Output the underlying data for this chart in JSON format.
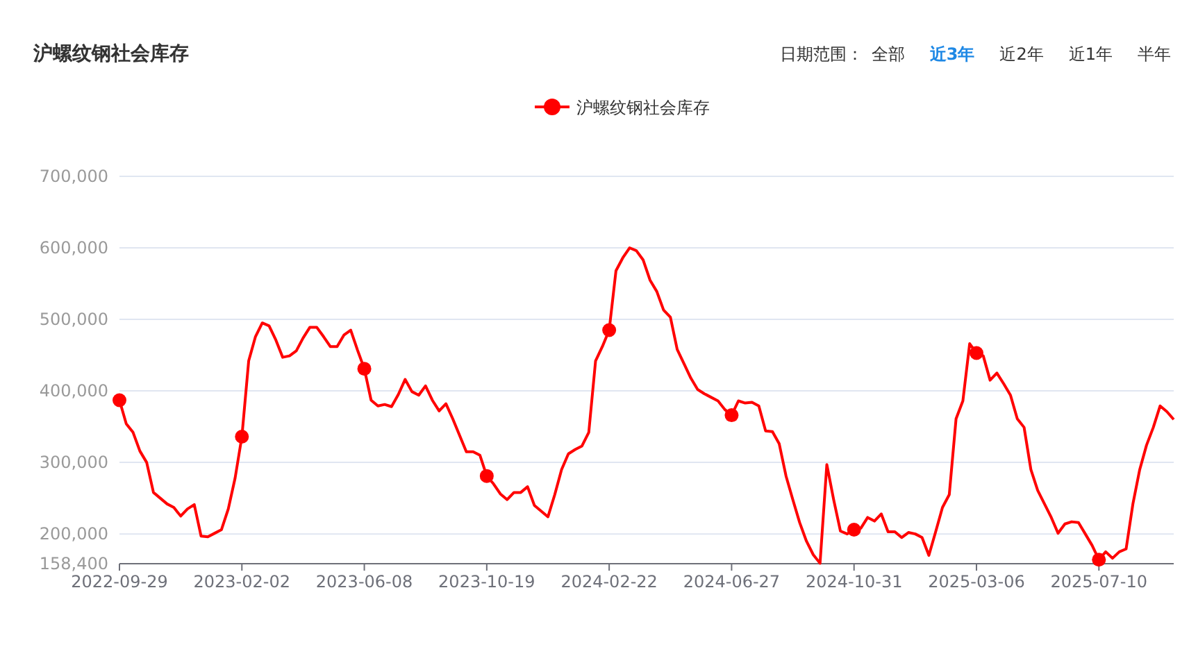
{
  "chart_data": {
    "type": "line",
    "title": "沪螺纹钢社会库存",
    "annotations": [
      "日期范围：",
      "全部",
      "**近3年**",
      "近2年",
      "近1年",
      "半年"
    ],
    "categories": [
      "2022-09-29",
      null,
      null,
      null,
      null,
      null,
      null,
      null,
      null,
      null,
      null,
      null,
      null,
      null,
      null,
      null,
      null,
      null,
      "2023-02-02",
      null,
      null,
      null,
      null,
      null,
      null,
      null,
      null,
      null,
      null,
      null,
      null,
      null,
      null,
      null,
      null,
      null,
      "2023-06-08",
      null,
      null,
      null,
      null,
      null,
      null,
      null,
      null,
      null,
      null,
      null,
      null,
      null,
      null,
      null,
      null,
      null,
      "2023-10-19",
      null,
      null,
      null,
      null,
      null,
      null,
      null,
      null,
      null,
      null,
      null,
      null,
      null,
      null,
      null,
      null,
      null,
      "2024-02-22",
      null,
      null,
      null,
      null,
      null,
      null,
      null,
      null,
      null,
      null,
      null,
      null,
      null,
      null,
      null,
      null,
      null,
      "2024-06-27",
      null,
      null,
      null,
      null,
      null,
      null,
      null,
      null,
      null,
      null,
      null,
      null,
      null,
      null,
      null,
      null,
      null,
      "2024-10-31",
      null,
      null,
      null,
      null,
      null,
      null,
      null,
      null,
      null,
      null,
      null,
      null,
      null,
      null,
      null,
      null,
      null,
      "2025-03-06",
      null,
      null,
      null,
      null,
      null,
      null,
      null,
      null,
      null,
      null,
      null,
      null,
      null,
      null,
      null,
      null,
      null,
      "2025-07-10",
      null,
      null,
      null,
      null,
      null,
      null,
      null,
      null,
      null,
      null,
      null
    ],
    "series": [
      {
        "name": "沪螺纹钢社会库存",
        "color": "#ff0000",
        "values": [
          387000,
          354000,
          342000,
          316000,
          300000,
          258000,
          250000,
          242000,
          237000,
          225000,
          235000,
          241000,
          197000,
          196000,
          201000,
          206000,
          235000,
          278000,
          336000,
          442000,
          476000,
          495000,
          491000,
          471000,
          447000,
          449000,
          456000,
          474000,
          489000,
          489000,
          476000,
          462000,
          462000,
          478000,
          485000,
          457000,
          431000,
          387000,
          379000,
          381000,
          378000,
          395000,
          416000,
          399000,
          394000,
          407000,
          387000,
          372000,
          382000,
          361000,
          338000,
          315000,
          315000,
          310000,
          281000,
          270000,
          256000,
          248000,
          258000,
          258000,
          266000,
          240000,
          232000,
          224000,
          255000,
          290000,
          312000,
          318000,
          323000,
          342000,
          442000,
          462000,
          485000,
          568000,
          586000,
          600000,
          596000,
          583000,
          555000,
          539000,
          513000,
          503000,
          458000,
          438000,
          418000,
          402000,
          396000,
          391000,
          386000,
          374000,
          366000,
          386000,
          383000,
          384000,
          379000,
          344000,
          343000,
          326000,
          281000,
          248000,
          216000,
          190000,
          171000,
          159000,
          297000,
          248000,
          204000,
          200000,
          206000,
          208000,
          223000,
          218000,
          228000,
          203000,
          203000,
          195000,
          202000,
          200000,
          195000,
          170000,
          203000,
          237000,
          255000,
          361000,
          386000,
          466000,
          453000,
          449000,
          415000,
          425000,
          410000,
          394000,
          361000,
          349000,
          290000,
          261000,
          242000,
          223000,
          201000,
          214000,
          217000,
          216000,
          200000,
          184000,
          164000,
          175000,
          166000,
          175000,
          179000,
          242000,
          290000,
          324000,
          349000,
          379000,
          371000,
          360000
        ]
      },
      {
        "type": "scatter",
        "color": "#ff0000",
        "marker": "circle",
        "values": [
          387000,
          null,
          null,
          null,
          null,
          null,
          null,
          null,
          null,
          null,
          null,
          null,
          null,
          null,
          null,
          null,
          null,
          null,
          336000,
          null,
          null,
          null,
          null,
          null,
          null,
          null,
          null,
          null,
          null,
          null,
          null,
          null,
          null,
          null,
          null,
          null,
          431000,
          null,
          null,
          null,
          null,
          null,
          null,
          null,
          null,
          null,
          null,
          null,
          null,
          null,
          null,
          null,
          null,
          null,
          281000,
          null,
          null,
          null,
          null,
          null,
          null,
          null,
          null,
          null,
          null,
          null,
          null,
          null,
          null,
          null,
          null,
          null,
          485000,
          null,
          null,
          null,
          null,
          null,
          null,
          null,
          null,
          null,
          null,
          null,
          null,
          null,
          null,
          null,
          null,
          null,
          366000,
          null,
          null,
          null,
          null,
          null,
          null,
          null,
          null,
          null,
          null,
          null,
          null,
          null,
          null,
          null,
          null,
          null,
          206000,
          null,
          null,
          null,
          null,
          null,
          null,
          null,
          null,
          null,
          null,
          null,
          null,
          null,
          null,
          null,
          null,
          null,
          453000,
          null,
          null,
          null,
          null,
          null,
          null,
          null,
          null,
          null,
          null,
          null,
          null,
          null,
          null,
          null,
          null,
          null,
          164000,
          null,
          null,
          null,
          null,
          null,
          null,
          null,
          null,
          null,
          null,
          null
        ]
      }
    ],
    "ylim": [
      158400,
      700000
    ],
    "yticks": [
      {
        "value": 158400,
        "label": "158,400"
      },
      {
        "value": 200000,
        "label": "200,000"
      },
      {
        "value": 300000,
        "label": "300,000"
      },
      {
        "value": 400000,
        "label": "400,000"
      },
      {
        "value": 500000,
        "label": "500,000"
      },
      {
        "value": 600000,
        "label": "600,000"
      },
      {
        "value": 700000,
        "label": "700,000"
      }
    ],
    "grid": "y",
    "legend": "top",
    "line_style": "solid"
  }
}
